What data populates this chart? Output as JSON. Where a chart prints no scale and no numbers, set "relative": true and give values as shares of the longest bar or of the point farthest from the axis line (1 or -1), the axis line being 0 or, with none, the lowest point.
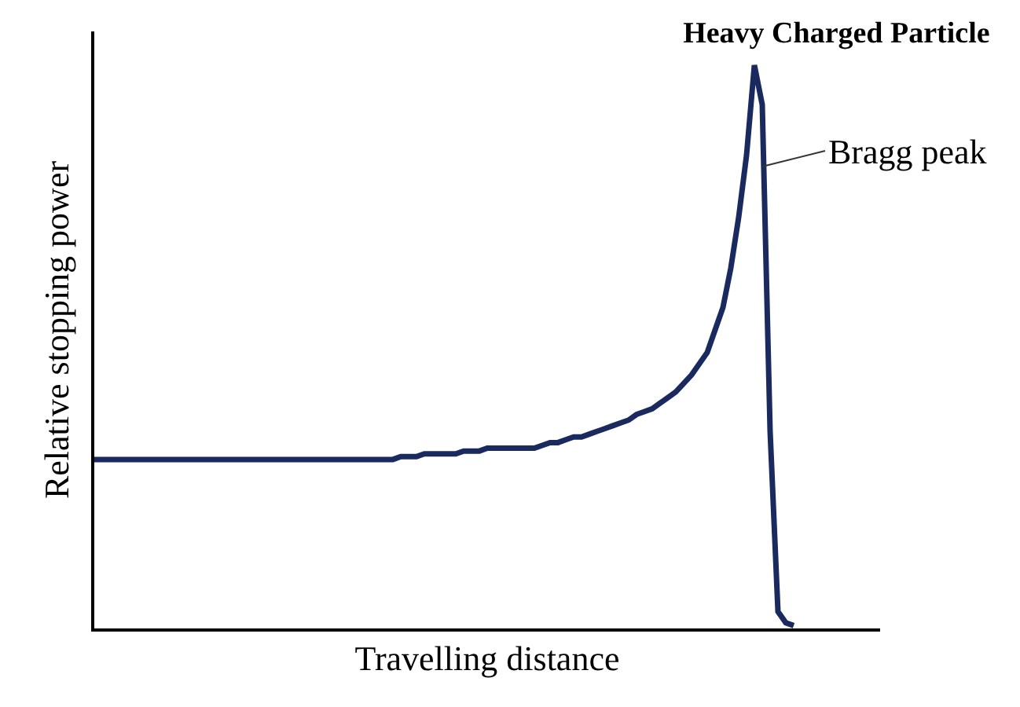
{
  "chart_data": {
    "type": "line",
    "title": "Heavy Charged Particle",
    "xlabel": "Travelling distance",
    "ylabel": "Relative stopping power",
    "relative": true,
    "marker": "none",
    "line_style": "solid",
    "categories": [
      null,
      null,
      null,
      null,
      null,
      null,
      null,
      null,
      null,
      null,
      null,
      null,
      null,
      null,
      null,
      null,
      null,
      null,
      null,
      null,
      null,
      null,
      null,
      null,
      null,
      null,
      null,
      null,
      null,
      null,
      null,
      null,
      null,
      null,
      null,
      null,
      null,
      null,
      null,
      null,
      null,
      null,
      null,
      null,
      null,
      null,
      null,
      null,
      null,
      null,
      null,
      null,
      null,
      null,
      null,
      null,
      null,
      null,
      null,
      null,
      null,
      null,
      null,
      null,
      null,
      null,
      null,
      null,
      null,
      null,
      null,
      null,
      null,
      null,
      null,
      null,
      null,
      null,
      null,
      null,
      null,
      null,
      null,
      null,
      null,
      null,
      null,
      null,
      null,
      null
    ],
    "series": [
      {
        "color": "#1a2a5e",
        "values": [
          0.3,
          0.3,
          0.3,
          0.3,
          0.3,
          0.3,
          0.3,
          0.3,
          0.3,
          0.3,
          0.3,
          0.3,
          0.3,
          0.3,
          0.3,
          0.3,
          0.3,
          0.3,
          0.3,
          0.3,
          0.3,
          0.3,
          0.3,
          0.3,
          0.3,
          0.3,
          0.3,
          0.3,
          0.3,
          0.3,
          0.3,
          0.3,
          0.3,
          0.3,
          0.3,
          0.3,
          0.3,
          0.3,
          0.3,
          0.305,
          0.305,
          0.305,
          0.31,
          0.31,
          0.31,
          0.31,
          0.31,
          0.315,
          0.315,
          0.315,
          0.32,
          0.32,
          0.32,
          0.32,
          0.32,
          0.32,
          0.32,
          0.325,
          0.33,
          0.33,
          0.335,
          0.34,
          0.34,
          0.345,
          0.35,
          0.355,
          0.36,
          0.365,
          0.37,
          0.38,
          0.385,
          0.39,
          0.4,
          0.41,
          0.42,
          0.435,
          0.45,
          0.47,
          0.49,
          0.53,
          0.57,
          0.64,
          0.73,
          0.84,
          1.0,
          0.93,
          0.35,
          0.03,
          0.01,
          0.005
        ]
      }
    ],
    "annotations": [
      "Bragg peak"
    ]
  }
}
